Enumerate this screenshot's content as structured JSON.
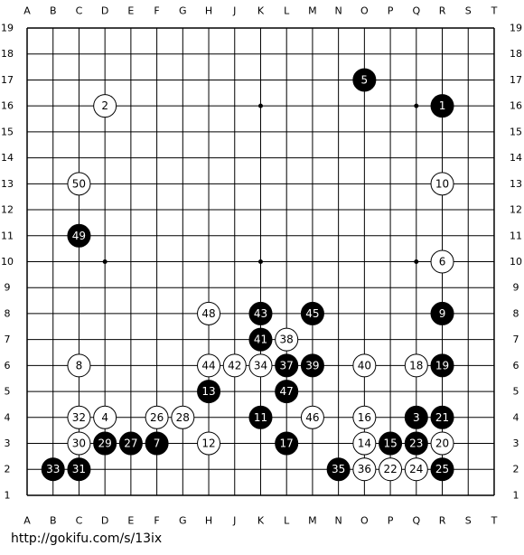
{
  "columns": [
    "A",
    "B",
    "C",
    "D",
    "E",
    "F",
    "G",
    "H",
    "J",
    "K",
    "L",
    "M",
    "N",
    "O",
    "P",
    "Q",
    "R",
    "S",
    "T"
  ],
  "rows": [
    19,
    18,
    17,
    16,
    15,
    14,
    13,
    12,
    11,
    10,
    9,
    8,
    7,
    6,
    5,
    4,
    3,
    2,
    1
  ],
  "stones": [
    {
      "n": 1,
      "color": "black",
      "col": "R",
      "row": 16
    },
    {
      "n": 2,
      "color": "white",
      "col": "D",
      "row": 16
    },
    {
      "n": 3,
      "color": "black",
      "col": "Q",
      "row": 4
    },
    {
      "n": 4,
      "color": "white",
      "col": "D",
      "row": 4
    },
    {
      "n": 5,
      "color": "black",
      "col": "O",
      "row": 17
    },
    {
      "n": 6,
      "color": "white",
      "col": "R",
      "row": 10
    },
    {
      "n": 7,
      "color": "black",
      "col": "F",
      "row": 3
    },
    {
      "n": 8,
      "color": "white",
      "col": "C",
      "row": 6
    },
    {
      "n": 9,
      "color": "black",
      "col": "R",
      "row": 8
    },
    {
      "n": 10,
      "color": "white",
      "col": "R",
      "row": 13
    },
    {
      "n": 11,
      "color": "black",
      "col": "K",
      "row": 4
    },
    {
      "n": 12,
      "color": "white",
      "col": "H",
      "row": 3
    },
    {
      "n": 13,
      "color": "black",
      "col": "H",
      "row": 5
    },
    {
      "n": 14,
      "color": "white",
      "col": "O",
      "row": 3
    },
    {
      "n": 15,
      "color": "black",
      "col": "P",
      "row": 3
    },
    {
      "n": 16,
      "color": "white",
      "col": "O",
      "row": 4
    },
    {
      "n": 17,
      "color": "black",
      "col": "L",
      "row": 3
    },
    {
      "n": 18,
      "color": "white",
      "col": "Q",
      "row": 6
    },
    {
      "n": 19,
      "color": "black",
      "col": "R",
      "row": 6
    },
    {
      "n": 20,
      "color": "white",
      "col": "R",
      "row": 3
    },
    {
      "n": 21,
      "color": "black",
      "col": "R",
      "row": 4
    },
    {
      "n": 22,
      "color": "white",
      "col": "P",
      "row": 2
    },
    {
      "n": 23,
      "color": "black",
      "col": "Q",
      "row": 3
    },
    {
      "n": 24,
      "color": "white",
      "col": "Q",
      "row": 2
    },
    {
      "n": 25,
      "color": "black",
      "col": "R",
      "row": 2
    },
    {
      "n": 26,
      "color": "white",
      "col": "F",
      "row": 4
    },
    {
      "n": 27,
      "color": "black",
      "col": "E",
      "row": 3
    },
    {
      "n": 28,
      "color": "white",
      "col": "G",
      "row": 4
    },
    {
      "n": 29,
      "color": "black",
      "col": "D",
      "row": 3
    },
    {
      "n": 30,
      "color": "white",
      "col": "C",
      "row": 3
    },
    {
      "n": 31,
      "color": "black",
      "col": "C",
      "row": 2
    },
    {
      "n": 32,
      "color": "white",
      "col": "C",
      "row": 4
    },
    {
      "n": 33,
      "color": "black",
      "col": "B",
      "row": 2
    },
    {
      "n": 34,
      "color": "white",
      "col": "K",
      "row": 6
    },
    {
      "n": 35,
      "color": "black",
      "col": "N",
      "row": 2
    },
    {
      "n": 36,
      "color": "white",
      "col": "O",
      "row": 2
    },
    {
      "n": 37,
      "color": "black",
      "col": "L",
      "row": 6
    },
    {
      "n": 38,
      "color": "white",
      "col": "L",
      "row": 7
    },
    {
      "n": 39,
      "color": "black",
      "col": "M",
      "row": 6
    },
    {
      "n": 40,
      "color": "white",
      "col": "O",
      "row": 6
    },
    {
      "n": 41,
      "color": "black",
      "col": "K",
      "row": 7
    },
    {
      "n": 42,
      "color": "white",
      "col": "J",
      "row": 6
    },
    {
      "n": 43,
      "color": "black",
      "col": "K",
      "row": 8
    },
    {
      "n": 44,
      "color": "white",
      "col": "H",
      "row": 6
    },
    {
      "n": 45,
      "color": "black",
      "col": "M",
      "row": 8
    },
    {
      "n": 46,
      "color": "white",
      "col": "M",
      "row": 4
    },
    {
      "n": 47,
      "color": "black",
      "col": "L",
      "row": 5
    },
    {
      "n": 48,
      "color": "white",
      "col": "H",
      "row": 8
    },
    {
      "n": 49,
      "color": "black",
      "col": "C",
      "row": 11
    },
    {
      "n": 50,
      "color": "white",
      "col": "C",
      "row": 13
    }
  ],
  "footer": "http://gokifu.com/s/13ix"
}
